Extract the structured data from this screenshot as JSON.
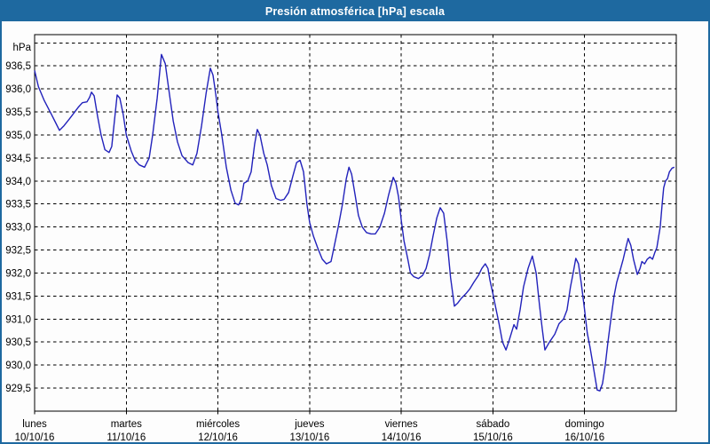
{
  "titlebar": {
    "title": "Presión atmosférica [hPa] escala",
    "bg_color": "#1e69a0",
    "text_color": "#ffffff"
  },
  "chart_data": {
    "type": "line",
    "title": "Presión atmosférica [hPa] escala",
    "unit_label": "hPa",
    "line_color": "#2222bb",
    "grid_color": "#000000",
    "grid_style": "dashed",
    "legend": "none",
    "ylim": [
      929.0,
      937.18
    ],
    "grid_values": [
      929.5,
      930.0,
      930.5,
      931.0,
      931.5,
      932.0,
      932.5,
      933.0,
      933.5,
      934.0,
      934.5,
      935.0,
      935.5,
      936.0,
      936.5,
      937.0
    ],
    "yticks": [
      {
        "v": 936.5,
        "label": "936,5"
      },
      {
        "v": 936.0,
        "label": "936,0"
      },
      {
        "v": 935.5,
        "label": "935,5"
      },
      {
        "v": 935.0,
        "label": "935,0"
      },
      {
        "v": 934.5,
        "label": "934,5"
      },
      {
        "v": 934.0,
        "label": "934,0"
      },
      {
        "v": 933.5,
        "label": "933,5"
      },
      {
        "v": 933.0,
        "label": "933,0"
      },
      {
        "v": 932.5,
        "label": "932,5"
      },
      {
        "v": 932.0,
        "label": "932,0"
      },
      {
        "v": 931.5,
        "label": "931,5"
      },
      {
        "v": 931.0,
        "label": "931,0"
      },
      {
        "v": 930.5,
        "label": "930,5"
      },
      {
        "v": 930.0,
        "label": "930,0"
      },
      {
        "v": 929.5,
        "label": "929,5"
      }
    ],
    "x_axis": {
      "hours_total": 168,
      "day_tick_hours": [
        0,
        24,
        48,
        72,
        96,
        120,
        144
      ],
      "days": [
        {
          "name": "lunes",
          "date": "10/10/16"
        },
        {
          "name": "martes",
          "date": "11/10/16"
        },
        {
          "name": "miércoles",
          "date": "12/10/16"
        },
        {
          "name": "jueves",
          "date": "13/10/16"
        },
        {
          "name": "viernes",
          "date": "14/10/16"
        },
        {
          "name": "sábado",
          "date": "15/10/16"
        },
        {
          "name": "domingo",
          "date": "16/10/16"
        }
      ]
    },
    "series": [
      {
        "name": "Presión atmosférica",
        "points": [
          [
            0,
            936.4
          ],
          [
            1,
            936.05
          ],
          [
            2.5,
            935.75
          ],
          [
            4.4,
            935.45
          ],
          [
            5.6,
            935.25
          ],
          [
            6.5,
            935.1
          ],
          [
            7.7,
            935.2
          ],
          [
            9.1,
            935.35
          ],
          [
            10.5,
            935.5
          ],
          [
            11.4,
            935.6
          ],
          [
            12.5,
            935.7
          ],
          [
            13.7,
            935.72
          ],
          [
            14.4,
            935.82
          ],
          [
            14.9,
            935.93
          ],
          [
            15.6,
            935.85
          ],
          [
            16.5,
            935.4
          ],
          [
            17.4,
            935.0
          ],
          [
            18.4,
            934.68
          ],
          [
            19.5,
            934.62
          ],
          [
            20.2,
            934.75
          ],
          [
            20.9,
            935.3
          ],
          [
            21.6,
            935.87
          ],
          [
            22.3,
            935.8
          ],
          [
            23.2,
            935.45
          ],
          [
            24,
            935.0
          ],
          [
            25.3,
            934.65
          ],
          [
            26.3,
            934.45
          ],
          [
            27.4,
            934.35
          ],
          [
            28.8,
            934.3
          ],
          [
            30,
            934.5
          ],
          [
            30.9,
            935.0
          ],
          [
            32.1,
            935.8
          ],
          [
            33.2,
            936.75
          ],
          [
            34.2,
            936.55
          ],
          [
            35.1,
            936.0
          ],
          [
            36.3,
            935.3
          ],
          [
            37.4,
            934.85
          ],
          [
            38.6,
            934.55
          ],
          [
            40.2,
            934.4
          ],
          [
            41.4,
            934.35
          ],
          [
            42.5,
            934.6
          ],
          [
            43.7,
            935.2
          ],
          [
            44.9,
            935.9
          ],
          [
            46,
            936.45
          ],
          [
            46.7,
            936.3
          ],
          [
            47.4,
            935.9
          ],
          [
            48,
            935.5
          ],
          [
            49,
            935.0
          ],
          [
            50.2,
            934.3
          ],
          [
            51.4,
            933.8
          ],
          [
            52.5,
            933.52
          ],
          [
            53.4,
            933.48
          ],
          [
            54.1,
            933.6
          ],
          [
            54.8,
            933.95
          ],
          [
            55.8,
            934.0
          ],
          [
            56.7,
            934.2
          ],
          [
            57.6,
            934.8
          ],
          [
            58.3,
            935.12
          ],
          [
            59,
            935.0
          ],
          [
            60,
            934.6
          ],
          [
            60.9,
            934.35
          ],
          [
            62,
            933.9
          ],
          [
            63.2,
            933.62
          ],
          [
            64.4,
            933.58
          ],
          [
            65.3,
            933.6
          ],
          [
            66.5,
            933.75
          ],
          [
            67.6,
            934.1
          ],
          [
            68.6,
            934.4
          ],
          [
            69.5,
            934.45
          ],
          [
            70.4,
            934.2
          ],
          [
            71.3,
            933.5
          ],
          [
            72,
            933.1
          ],
          [
            73,
            932.8
          ],
          [
            74.1,
            932.55
          ],
          [
            75.3,
            932.3
          ],
          [
            76.4,
            932.2
          ],
          [
            77.6,
            932.25
          ],
          [
            78.5,
            932.6
          ],
          [
            79.5,
            933.0
          ],
          [
            80.6,
            933.5
          ],
          [
            81.6,
            934.05
          ],
          [
            82.3,
            934.3
          ],
          [
            83,
            934.15
          ],
          [
            83.9,
            933.7
          ],
          [
            84.8,
            933.25
          ],
          [
            85.8,
            933.0
          ],
          [
            86.9,
            932.88
          ],
          [
            88.1,
            932.85
          ],
          [
            89.2,
            932.85
          ],
          [
            90.4,
            933.0
          ],
          [
            91.6,
            933.3
          ],
          [
            92.7,
            933.7
          ],
          [
            93.9,
            934.08
          ],
          [
            94.6,
            933.95
          ],
          [
            95.3,
            933.65
          ],
          [
            96,
            933.15
          ],
          [
            96.7,
            932.7
          ],
          [
            97.7,
            932.3
          ],
          [
            98.4,
            932.0
          ],
          [
            99.3,
            931.92
          ],
          [
            100.5,
            931.88
          ],
          [
            101.6,
            931.95
          ],
          [
            102.5,
            932.1
          ],
          [
            103.4,
            932.4
          ],
          [
            104.3,
            932.8
          ],
          [
            105.3,
            933.2
          ],
          [
            106.2,
            933.42
          ],
          [
            107.1,
            933.3
          ],
          [
            108,
            932.7
          ],
          [
            108.9,
            931.9
          ],
          [
            109.9,
            931.28
          ],
          [
            110.8,
            931.35
          ],
          [
            111.7,
            931.45
          ],
          [
            112.9,
            931.55
          ],
          [
            113.9,
            931.65
          ],
          [
            115,
            931.8
          ],
          [
            116.2,
            931.95
          ],
          [
            117.1,
            932.1
          ],
          [
            118,
            932.2
          ],
          [
            118.7,
            932.1
          ],
          [
            119.2,
            931.85
          ],
          [
            120,
            931.55
          ],
          [
            120.6,
            931.3
          ],
          [
            121.6,
            930.9
          ],
          [
            122.5,
            930.5
          ],
          [
            123.4,
            930.33
          ],
          [
            124.3,
            930.55
          ],
          [
            125.5,
            930.88
          ],
          [
            126.2,
            930.78
          ],
          [
            127.1,
            931.2
          ],
          [
            128,
            931.7
          ],
          [
            129.2,
            932.1
          ],
          [
            130.3,
            932.37
          ],
          [
            131.3,
            932.0
          ],
          [
            132.2,
            931.3
          ],
          [
            132.9,
            930.8
          ],
          [
            133.6,
            930.33
          ],
          [
            134.8,
            930.5
          ],
          [
            136.2,
            930.67
          ],
          [
            137.3,
            930.9
          ],
          [
            138.5,
            931.0
          ],
          [
            139.4,
            931.2
          ],
          [
            140.3,
            931.7
          ],
          [
            141,
            932.0
          ],
          [
            141.7,
            932.32
          ],
          [
            142.4,
            932.2
          ],
          [
            143.1,
            931.8
          ],
          [
            144,
            931.2
          ],
          [
            144.7,
            930.7
          ],
          [
            145.4,
            930.4
          ],
          [
            146.1,
            930.05
          ],
          [
            146.8,
            929.7
          ],
          [
            147.3,
            929.46
          ],
          [
            148,
            929.44
          ],
          [
            148.7,
            929.6
          ],
          [
            149.4,
            930.0
          ],
          [
            150.1,
            930.5
          ],
          [
            150.8,
            930.95
          ],
          [
            151.7,
            931.5
          ],
          [
            152.4,
            931.8
          ],
          [
            153.1,
            932.0
          ],
          [
            154.1,
            932.3
          ],
          [
            154.8,
            932.55
          ],
          [
            155.4,
            932.75
          ],
          [
            156.1,
            932.6
          ],
          [
            156.8,
            932.3
          ],
          [
            157.8,
            931.97
          ],
          [
            158.5,
            932.1
          ],
          [
            159,
            932.25
          ],
          [
            159.7,
            932.2
          ],
          [
            160.4,
            932.3
          ],
          [
            161.1,
            932.35
          ],
          [
            161.8,
            932.3
          ],
          [
            162.4,
            932.45
          ],
          [
            162.9,
            932.55
          ],
          [
            163.4,
            932.8
          ],
          [
            163.8,
            933.0
          ],
          [
            164.3,
            933.5
          ],
          [
            164.7,
            933.85
          ],
          [
            165.2,
            934.0
          ],
          [
            165.7,
            934.05
          ],
          [
            166.2,
            934.2
          ],
          [
            166.9,
            934.28
          ],
          [
            167.5,
            934.3
          ]
        ]
      }
    ]
  }
}
